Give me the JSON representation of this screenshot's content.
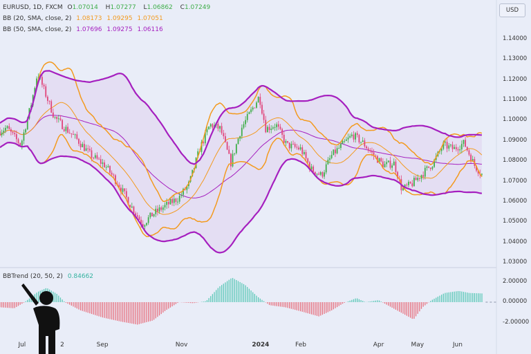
{
  "currency_button": "USD",
  "legend": {
    "main": {
      "symbol": "EURUSD, 1D, FXCM",
      "o_label": "O",
      "o": "1.07014",
      "h_label": "H",
      "h": "1.07277",
      "l_label": "L",
      "l": "1.06862",
      "c_label": "C",
      "c": "1.07249"
    },
    "bb20": {
      "label": "BB (20, SMA, close, 2)",
      "basis": "1.08173",
      "upper": "1.09295",
      "lower": "1.07051"
    },
    "bb50": {
      "label": "BB (50, SMA, close, 2)",
      "basis": "1.07696",
      "upper": "1.09275",
      "lower": "1.06116"
    },
    "bbtrend": {
      "label": "BBTrend (20, 50, 2)",
      "value": "0.84662"
    }
  },
  "colors": {
    "up": "#3fae4a",
    "down": "#e0457b",
    "bb20": "#f39a1e",
    "bb50": "#a51fbf",
    "bbtrend_pos": "#5cc9b8",
    "bbtrend_neg": "#e8707e",
    "legend_value_green": "#3fae4a",
    "bbtrend_value": "#35b3a0",
    "background": "#e9edf8"
  },
  "chart_data": {
    "type": "candlestick",
    "symbol": "EURUSD",
    "timeframe": "1D",
    "price_ticks": [
      "1.14000",
      "1.13000",
      "1.12000",
      "1.11000",
      "1.10000",
      "1.09000",
      "1.08000",
      "1.07000",
      "1.06000",
      "1.05000",
      "1.04000",
      "1.03000"
    ],
    "ylim": [
      1.03,
      1.14
    ],
    "time_ticks": [
      {
        "label": "Jul",
        "date": "2023-07-01"
      },
      {
        "label": "2",
        "date": "2023-08-01"
      },
      {
        "label": "Sep",
        "date": "2023-09-01"
      },
      {
        "label": "Nov",
        "date": "2023-11-01"
      },
      {
        "label": "2024",
        "date": "2024-01-01"
      },
      {
        "label": "Feb",
        "date": "2024-02-01"
      },
      {
        "label": "Apr",
        "date": "2024-04-01"
      },
      {
        "label": "May",
        "date": "2024-05-01"
      },
      {
        "label": "Jun",
        "date": "2024-06-01"
      }
    ],
    "close_path": [
      [
        "2023-06-14",
        1.0948
      ],
      [
        "2023-06-19",
        1.0965
      ],
      [
        "2023-06-30",
        1.088
      ],
      [
        "2023-07-08",
        1.108
      ],
      [
        "2023-07-13",
        1.1237
      ],
      [
        "2023-07-18",
        1.115
      ],
      [
        "2023-07-26",
        1.1016
      ],
      [
        "2023-08-03",
        1.0965
      ],
      [
        "2023-08-12",
        1.091
      ],
      [
        "2023-08-23",
        1.083
      ],
      [
        "2023-09-03",
        1.078
      ],
      [
        "2023-09-13",
        1.069
      ],
      [
        "2023-09-24",
        1.057
      ],
      [
        "2023-10-02",
        1.049
      ],
      [
        "2023-10-10",
        1.054
      ],
      [
        "2023-10-22",
        1.059
      ],
      [
        "2023-10-30",
        1.062
      ],
      [
        "2023-11-07",
        1.069
      ],
      [
        "2023-11-15",
        1.086
      ],
      [
        "2023-11-23",
        1.098
      ],
      [
        "2023-12-01",
        1.096
      ],
      [
        "2023-12-09",
        1.079
      ],
      [
        "2023-12-17",
        1.096
      ],
      [
        "2023-12-25",
        1.105
      ],
      [
        "2023-12-31",
        1.112
      ],
      [
        "2024-01-05",
        1.096
      ],
      [
        "2024-01-13",
        1.098
      ],
      [
        "2024-01-21",
        1.088
      ],
      [
        "2024-02-01",
        1.086
      ],
      [
        "2024-02-09",
        1.076
      ],
      [
        "2024-02-17",
        1.073
      ],
      [
        "2024-02-25",
        1.083
      ],
      [
        "2024-03-04",
        1.088
      ],
      [
        "2024-03-12",
        1.093
      ],
      [
        "2024-03-20",
        1.089
      ],
      [
        "2024-03-28",
        1.083
      ],
      [
        "2024-04-05",
        1.078
      ],
      [
        "2024-04-13",
        1.079
      ],
      [
        "2024-04-19",
        1.066
      ],
      [
        "2024-04-27",
        1.069
      ],
      [
        "2024-05-05",
        1.074
      ],
      [
        "2024-05-13",
        1.079
      ],
      [
        "2024-05-21",
        1.088
      ],
      [
        "2024-05-29",
        1.086
      ],
      [
        "2024-06-06",
        1.089
      ],
      [
        "2024-06-14",
        1.078
      ],
      [
        "2024-06-21",
        1.0725
      ]
    ],
    "indicators": [
      {
        "name": "BB (20, SMA, close, 2)",
        "length": 20,
        "mult": 2
      },
      {
        "name": "BB (50, SMA, close, 2)",
        "length": 50,
        "mult": 2
      }
    ],
    "bbtrend": {
      "ticks": [
        "2.00000",
        "0.00000",
        "-2.00000"
      ],
      "ylim": [
        -2.8,
        3.3
      ],
      "values": [
        [
          "2023-06-14",
          -0.5
        ],
        [
          "2023-06-25",
          -0.6
        ],
        [
          "2023-07-03",
          0
        ],
        [
          "2023-07-13",
          1.0
        ],
        [
          "2023-07-20",
          1.4
        ],
        [
          "2023-07-28",
          0.8
        ],
        [
          "2023-08-03",
          0
        ],
        [
          "2023-08-15",
          -0.8
        ],
        [
          "2023-09-01",
          -1.5
        ],
        [
          "2023-09-15",
          -1.9
        ],
        [
          "2023-09-28",
          -2.2
        ],
        [
          "2023-10-10",
          -1.8
        ],
        [
          "2023-10-20",
          -0.8
        ],
        [
          "2023-10-30",
          0
        ],
        [
          "2023-11-10",
          -0.1
        ],
        [
          "2023-11-20",
          0.1
        ],
        [
          "2023-11-30",
          1.5
        ],
        [
          "2023-12-10",
          2.4
        ],
        [
          "2023-12-20",
          1.7
        ],
        [
          "2023-12-30",
          0.5
        ],
        [
          "2024-01-08",
          -0.3
        ],
        [
          "2024-01-20",
          -0.5
        ],
        [
          "2024-02-01",
          -0.9
        ],
        [
          "2024-02-15",
          -1.4
        ],
        [
          "2024-02-25",
          -0.8
        ],
        [
          "2024-03-05",
          -0.1
        ],
        [
          "2024-03-15",
          0.4
        ],
        [
          "2024-03-22",
          0
        ],
        [
          "2024-04-01",
          0.2
        ],
        [
          "2024-04-08",
          -0.3
        ],
        [
          "2024-04-18",
          -1.0
        ],
        [
          "2024-04-28",
          -1.7
        ],
        [
          "2024-05-05",
          -0.5
        ],
        [
          "2024-05-12",
          0.2
        ],
        [
          "2024-05-22",
          0.9
        ],
        [
          "2024-06-02",
          1.1
        ],
        [
          "2024-06-10",
          0.9
        ],
        [
          "2024-06-21",
          0.85
        ]
      ]
    }
  }
}
